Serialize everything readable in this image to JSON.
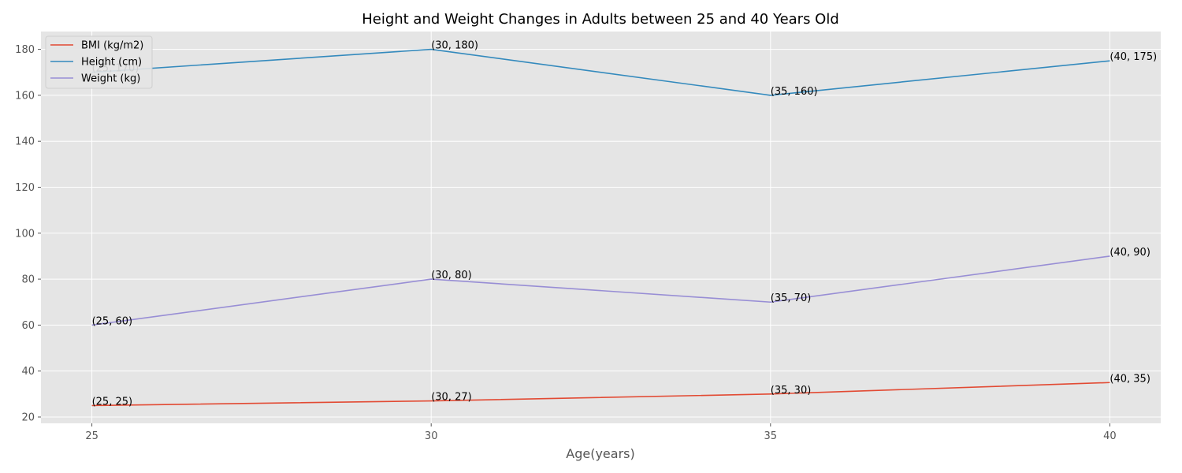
{
  "chart_data": {
    "type": "line",
    "title": "Height and Weight Changes in Adults between 25 and 40 Years Old",
    "xlabel": "Age(years)",
    "ylabel": "",
    "x": [
      25,
      30,
      35,
      40
    ],
    "xlim": [
      24.25,
      40.75
    ],
    "ylim": [
      17.25,
      187.75
    ],
    "yticks": [
      20,
      40,
      60,
      80,
      100,
      120,
      140,
      160,
      180
    ],
    "grid": true,
    "legend_position": "top-left",
    "series": [
      {
        "name": "BMI (kg/m2)",
        "color": "#E24A33",
        "values": [
          25,
          27,
          30,
          35
        ],
        "labels": [
          "(25, 25)",
          "(30, 27)",
          "(35, 30)",
          "(40, 35)"
        ]
      },
      {
        "name": "Height (cm)",
        "color": "#348ABD",
        "values": [
          170,
          180,
          160,
          175
        ],
        "labels": [
          "(25, 170)",
          "(30, 180)",
          "(35, 160)",
          "(40, 175)"
        ]
      },
      {
        "name": "Weight (kg)",
        "color": "#988ED5",
        "values": [
          60,
          80,
          70,
          90
        ],
        "labels": [
          "(25, 60)",
          "(30, 80)",
          "(35, 70)",
          "(40, 90)"
        ]
      }
    ]
  }
}
